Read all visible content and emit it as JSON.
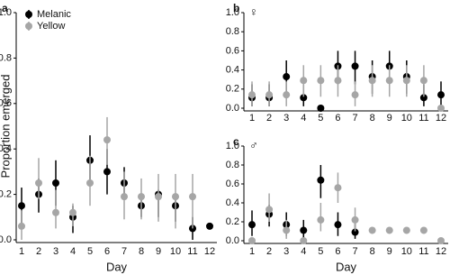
{
  "chart_data": [
    {
      "type": "scatter",
      "panel_label": "a",
      "y_label": "Proportion emerged",
      "x_label": "Day",
      "legend": "upper left",
      "categories": [
        "1",
        "2",
        "3",
        "4",
        "5",
        "6",
        "7",
        "8",
        "9",
        "10",
        "11",
        "12"
      ],
      "ylim": [
        0,
        1
      ],
      "yticks": [
        {
          "value": 0,
          "label": "0.0"
        },
        {
          "value": 0.2,
          "label": "0.2"
        },
        {
          "value": 0.4,
          "label": "0.4"
        },
        {
          "value": 0.6,
          "label": "0.6"
        },
        {
          "value": 0.8,
          "label": "0.8"
        },
        {
          "value": 1,
          "label": "1.0"
        }
      ],
      "series": [
        {
          "name": "Melanic",
          "color": "#000000",
          "values": [
            0.15,
            0.2,
            0.25,
            0.1,
            0.35,
            0.3,
            0.25,
            0.15,
            0.2,
            0.15,
            0.05,
            0.06
          ],
          "low": [
            0.05,
            0.12,
            0.15,
            0.03,
            0.25,
            0.2,
            0.18,
            0.1,
            0.1,
            0.08,
            0,
            null
          ],
          "high": [
            0.23,
            0.27,
            0.35,
            0.15,
            0.46,
            0.4,
            0.32,
            0.2,
            0.22,
            0.2,
            0.1,
            null
          ]
        },
        {
          "name": "Yellow",
          "color": "#a6a6a6",
          "values": [
            0.06,
            0.25,
            0.12,
            0.12,
            0.25,
            0.44,
            0.19,
            0.19,
            0.19,
            0.19,
            0.19,
            null
          ],
          "low": [
            0,
            0.18,
            0.05,
            0.06,
            0.15,
            0.33,
            0.09,
            0.09,
            0.08,
            0.05,
            0.05,
            null
          ],
          "high": [
            0.13,
            0.36,
            0.22,
            0.16,
            0.37,
            0.54,
            0.3,
            0.27,
            0.29,
            0.29,
            0.29,
            null
          ]
        }
      ]
    },
    {
      "type": "scatter",
      "panel_label": "b",
      "symbol": "♀",
      "x_label": "Day",
      "categories": [
        "1",
        "2",
        "3",
        "4",
        "5",
        "6",
        "7",
        "8",
        "9",
        "10",
        "11",
        "12"
      ],
      "ylim": [
        0,
        1
      ],
      "yticks": [
        {
          "value": 0,
          "label": "0.0"
        },
        {
          "value": 0.2,
          "label": "0.2"
        },
        {
          "value": 0.4,
          "label": "0.4"
        },
        {
          "value": 0.6,
          "label": "0.6"
        },
        {
          "value": 0.8,
          "label": "0.8"
        },
        {
          "value": 1,
          "label": "1.0"
        }
      ],
      "series": [
        {
          "name": "Melanic",
          "color": "#000000",
          "values": [
            0.11,
            0.11,
            0.33,
            0.11,
            0,
            0.44,
            0.44,
            0.33,
            0.44,
            0.33,
            0.11,
            0.14
          ],
          "low": [
            0.02,
            0.02,
            0.15,
            0.02,
            null,
            0.25,
            0.25,
            0.15,
            0.25,
            0.15,
            0.02,
            0.02
          ],
          "high": [
            0.25,
            0.25,
            0.5,
            0.25,
            null,
            0.6,
            0.6,
            0.5,
            0.6,
            0.5,
            0.25,
            0.28
          ]
        },
        {
          "name": "Yellow",
          "color": "#a6a6a6",
          "values": [
            0.14,
            0.14,
            0.14,
            0.29,
            0.29,
            0.29,
            0.14,
            0.29,
            0.29,
            0.29,
            0.29,
            0
          ],
          "low": [
            0.02,
            0.02,
            0.02,
            0.12,
            0.12,
            0.12,
            0.02,
            0.12,
            0.12,
            0.12,
            0.12,
            null
          ],
          "high": [
            0.28,
            0.28,
            0.28,
            0.45,
            0.45,
            0.45,
            0.28,
            0.45,
            0.45,
            0.45,
            0.45,
            null
          ]
        }
      ]
    },
    {
      "type": "scatter",
      "panel_label": "c",
      "symbol": "♂",
      "x_label": "Day",
      "categories": [
        "1",
        "2",
        "3",
        "4",
        "5",
        "6",
        "7",
        "8",
        "9",
        "10",
        "11",
        "12"
      ],
      "ylim": [
        0,
        1
      ],
      "yticks": [
        {
          "value": 0,
          "label": "0.0"
        },
        {
          "value": 0.2,
          "label": "0.2"
        },
        {
          "value": 0.4,
          "label": "0.4"
        },
        {
          "value": 0.6,
          "label": "0.6"
        },
        {
          "value": 0.8,
          "label": "0.8"
        },
        {
          "value": 1,
          "label": "1.0"
        }
      ],
      "series": [
        {
          "name": "Melanic",
          "color": "#000000",
          "values": [
            0.17,
            0.28,
            0.17,
            0.11,
            0.64,
            0.17,
            0.09,
            null,
            null,
            null,
            null,
            null
          ],
          "low": [
            0.05,
            0.15,
            0.05,
            0.02,
            0.45,
            0.05,
            0.02,
            null,
            null,
            null,
            null,
            null
          ],
          "high": [
            0.32,
            0.38,
            0.3,
            0.22,
            0.8,
            0.3,
            0.18,
            null,
            null,
            null,
            null,
            null
          ]
        },
        {
          "name": "Yellow",
          "color": "#a6a6a6",
          "values": [
            0,
            0.33,
            0.11,
            0,
            0.22,
            0.56,
            0.22,
            0.11,
            0.11,
            0.11,
            0.11,
            0
          ],
          "low": [
            null,
            0.2,
            0.02,
            null,
            0.1,
            0.4,
            0.1,
            null,
            null,
            null,
            null,
            null
          ],
          "high": [
            null,
            0.5,
            0.22,
            null,
            0.4,
            0.72,
            0.35,
            null,
            null,
            null,
            null,
            null
          ]
        }
      ]
    }
  ]
}
